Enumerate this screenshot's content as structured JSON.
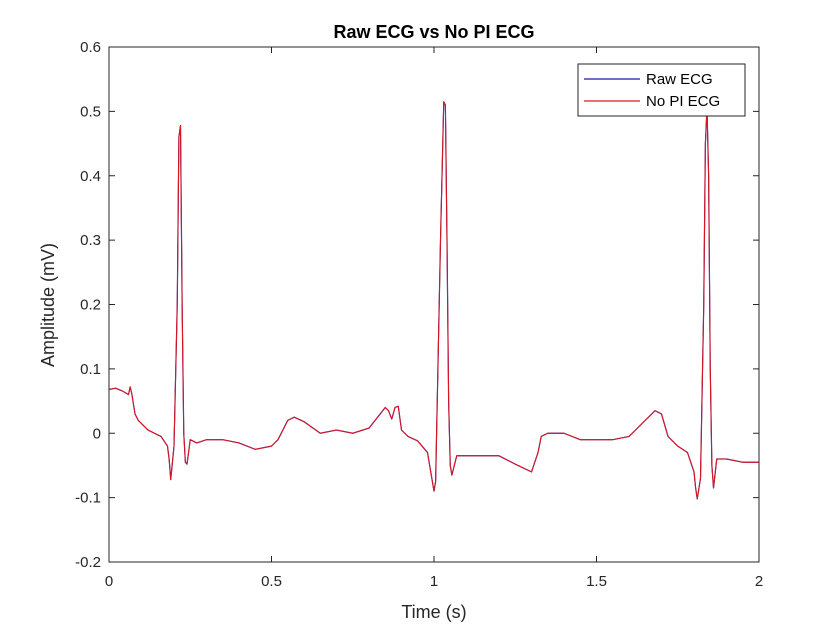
{
  "chart_data": {
    "type": "line",
    "title": "Raw ECG vs No PI ECG",
    "xlabel": "Time (s)",
    "ylabel": "Amplitude (mV)",
    "xlim": [
      0,
      2
    ],
    "ylim": [
      -0.2,
      0.6
    ],
    "xticks": [
      0,
      0.5,
      1,
      1.5,
      2
    ],
    "xtick_labels": [
      "0",
      "0.5",
      "1",
      "1.5",
      "2"
    ],
    "yticks": [
      -0.2,
      -0.1,
      0,
      0.1,
      0.2,
      0.3,
      0.4,
      0.5,
      0.6
    ],
    "ytick_labels": [
      "-0.2",
      "-0.1",
      "0",
      "0.1",
      "0.2",
      "0.3",
      "0.4",
      "0.5",
      "0.6"
    ],
    "grid": false,
    "legend_position": "top-right",
    "series": [
      {
        "name": "Raw ECG",
        "color": "#1a1a9c",
        "x": [
          0,
          0.02,
          0.04,
          0.06,
          0.065,
          0.07,
          0.08,
          0.09,
          0.1,
          0.12,
          0.14,
          0.16,
          0.18,
          0.185,
          0.19,
          0.2,
          0.21,
          0.215,
          0.22,
          0.225,
          0.23,
          0.235,
          0.24,
          0.25,
          0.27,
          0.3,
          0.35,
          0.4,
          0.45,
          0.5,
          0.52,
          0.55,
          0.57,
          0.6,
          0.65,
          0.7,
          0.75,
          0.8,
          0.85,
          0.86,
          0.87,
          0.88,
          0.89,
          0.9,
          0.92,
          0.95,
          0.98,
          0.99,
          1.0,
          1.005,
          1.01,
          1.02,
          1.03,
          1.035,
          1.04,
          1.045,
          1.05,
          1.055,
          1.06,
          1.07,
          1.08,
          1.1,
          1.15,
          1.2,
          1.25,
          1.3,
          1.32,
          1.33,
          1.35,
          1.4,
          1.45,
          1.5,
          1.55,
          1.6,
          1.65,
          1.68,
          1.7,
          1.72,
          1.75,
          1.78,
          1.8,
          1.805,
          1.81,
          1.82,
          1.83,
          1.835,
          1.84,
          1.845,
          1.85,
          1.855,
          1.86,
          1.87,
          1.9,
          1.95,
          2.0
        ],
        "y": [
          0.068,
          0.07,
          0.066,
          0.06,
          0.072,
          0.062,
          0.03,
          0.02,
          0.015,
          0.005,
          0.0,
          -0.005,
          -0.02,
          -0.04,
          -0.072,
          -0.02,
          0.2,
          0.46,
          0.478,
          0.2,
          0.0,
          -0.045,
          -0.048,
          -0.01,
          -0.015,
          -0.01,
          -0.01,
          -0.015,
          -0.025,
          -0.02,
          -0.01,
          0.02,
          0.025,
          0.018,
          0.0,
          0.005,
          0.0,
          0.008,
          0.04,
          0.035,
          0.022,
          0.04,
          0.042,
          0.005,
          -0.005,
          -0.012,
          -0.03,
          -0.06,
          -0.09,
          -0.075,
          0.05,
          0.3,
          0.515,
          0.51,
          0.3,
          0.05,
          -0.05,
          -0.065,
          -0.055,
          -0.035,
          -0.035,
          -0.035,
          -0.035,
          -0.035,
          -0.048,
          -0.06,
          -0.03,
          -0.005,
          0.0,
          0.0,
          -0.01,
          -0.01,
          -0.01,
          -0.005,
          0.02,
          0.035,
          0.03,
          -0.005,
          -0.02,
          -0.03,
          -0.06,
          -0.085,
          -0.102,
          -0.07,
          0.2,
          0.45,
          0.505,
          0.4,
          0.1,
          -0.05,
          -0.085,
          -0.04,
          -0.04,
          -0.045,
          -0.045
        ]
      },
      {
        "name": "No PI ECG",
        "color": "#e4161b",
        "x": [
          0,
          0.02,
          0.04,
          0.06,
          0.065,
          0.07,
          0.08,
          0.09,
          0.1,
          0.12,
          0.14,
          0.16,
          0.18,
          0.185,
          0.19,
          0.2,
          0.21,
          0.215,
          0.22,
          0.225,
          0.23,
          0.235,
          0.24,
          0.25,
          0.27,
          0.3,
          0.35,
          0.4,
          0.45,
          0.5,
          0.52,
          0.55,
          0.57,
          0.6,
          0.65,
          0.7,
          0.75,
          0.8,
          0.85,
          0.86,
          0.87,
          0.88,
          0.89,
          0.9,
          0.92,
          0.95,
          0.98,
          0.99,
          1.0,
          1.005,
          1.01,
          1.02,
          1.03,
          1.035,
          1.04,
          1.045,
          1.05,
          1.055,
          1.06,
          1.07,
          1.08,
          1.1,
          1.15,
          1.2,
          1.25,
          1.3,
          1.32,
          1.33,
          1.35,
          1.4,
          1.45,
          1.5,
          1.55,
          1.6,
          1.65,
          1.68,
          1.7,
          1.72,
          1.75,
          1.78,
          1.8,
          1.805,
          1.81,
          1.82,
          1.83,
          1.835,
          1.84,
          1.845,
          1.85,
          1.855,
          1.86,
          1.87,
          1.9,
          1.95,
          2.0
        ],
        "y": [
          0.068,
          0.07,
          0.066,
          0.06,
          0.072,
          0.062,
          0.03,
          0.02,
          0.015,
          0.005,
          0.0,
          -0.005,
          -0.02,
          -0.04,
          -0.072,
          -0.02,
          0.2,
          0.46,
          0.478,
          0.2,
          0.0,
          -0.045,
          -0.048,
          -0.01,
          -0.015,
          -0.01,
          -0.01,
          -0.015,
          -0.025,
          -0.02,
          -0.01,
          0.02,
          0.025,
          0.018,
          0.0,
          0.005,
          0.0,
          0.008,
          0.04,
          0.035,
          0.022,
          0.04,
          0.042,
          0.005,
          -0.005,
          -0.012,
          -0.03,
          -0.06,
          -0.09,
          -0.075,
          0.05,
          0.3,
          0.515,
          0.51,
          0.3,
          0.05,
          -0.05,
          -0.065,
          -0.055,
          -0.035,
          -0.035,
          -0.035,
          -0.035,
          -0.035,
          -0.048,
          -0.06,
          -0.03,
          -0.005,
          0.0,
          0.0,
          -0.01,
          -0.01,
          -0.01,
          -0.005,
          0.02,
          0.035,
          0.03,
          -0.005,
          -0.02,
          -0.03,
          -0.06,
          -0.085,
          -0.102,
          -0.07,
          0.2,
          0.45,
          0.505,
          0.4,
          0.1,
          -0.05,
          -0.085,
          -0.04,
          -0.04,
          -0.045,
          -0.045
        ]
      }
    ]
  }
}
